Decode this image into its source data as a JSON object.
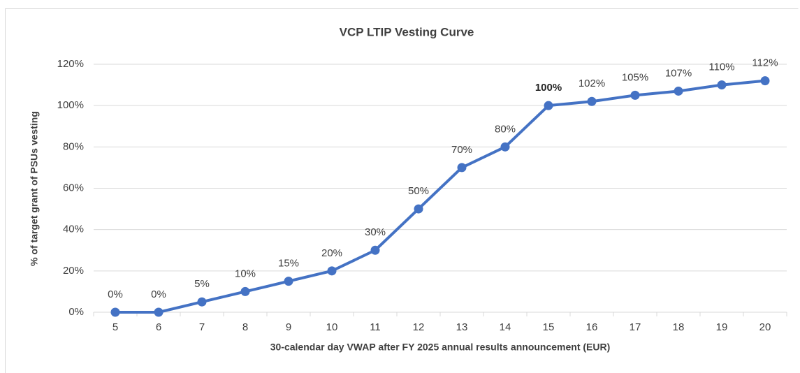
{
  "chart_data": {
    "type": "line",
    "title": "VCP LTIP Vesting Curve",
    "x_label": "30-calendar day VWAP after FY 2025 annual results announcement (EUR)",
    "y_label": "% of target grant of PSUs vesting",
    "categories": [
      "5",
      "6",
      "7",
      "8",
      "9",
      "10",
      "11",
      "12",
      "13",
      "14",
      "15",
      "16",
      "17",
      "18",
      "19",
      "20"
    ],
    "series": [
      {
        "name": "Vesting",
        "color": "#4472c4",
        "values": [
          0,
          0,
          5,
          10,
          15,
          20,
          30,
          50,
          70,
          80,
          100,
          102,
          105,
          107,
          110,
          112
        ],
        "value_labels": [
          "0%",
          "0%",
          "5%",
          "10%",
          "15%",
          "20%",
          "30%",
          "50%",
          "70%",
          "80%",
          "100%",
          "102%",
          "105%",
          "107%",
          "110%",
          "112%"
        ]
      }
    ],
    "bold_label_index": 10,
    "ylim": [
      0,
      120
    ],
    "yticks": [
      {
        "value": 0,
        "label": "0%"
      },
      {
        "value": 20,
        "label": "20%"
      },
      {
        "value": 40,
        "label": "40%"
      },
      {
        "value": 60,
        "label": "60%"
      },
      {
        "value": 80,
        "label": "80%"
      },
      {
        "value": 100,
        "label": "100%"
      },
      {
        "value": 120,
        "label": "120%"
      }
    ],
    "grid": true
  }
}
